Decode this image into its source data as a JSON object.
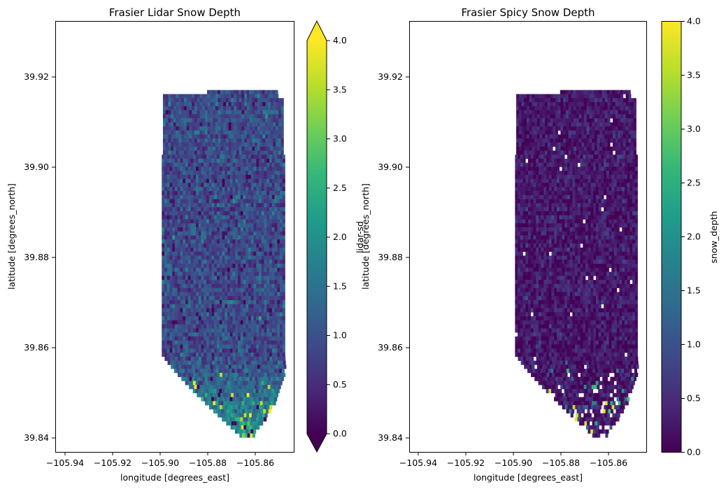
{
  "colormap": {
    "name": "viridis",
    "stops": [
      "#440154",
      "#482878",
      "#3e4989",
      "#31688e",
      "#26828e",
      "#1f9e89",
      "#35b779",
      "#6ece58",
      "#b5de2b",
      "#fde725"
    ]
  },
  "chart_data": [
    {
      "type": "heatmap",
      "title": "Frasier Lidar Snow Depth",
      "xlabel": "longitude [degrees_east]",
      "ylabel": "latitude [degrees_north]",
      "xlim": [
        -105.945,
        -105.845
      ],
      "ylim": [
        39.8365,
        39.9325
      ],
      "xticks": [
        "−105.94",
        "−105.92",
        "−105.90",
        "−105.88",
        "−105.86"
      ],
      "yticks": [
        "39.84",
        "39.86",
        "39.88",
        "39.90",
        "39.92"
      ],
      "data_extent": {
        "lon": [
          -105.9,
          -105.849
        ],
        "lat": [
          39.8398,
          39.9172
        ]
      },
      "value_range": [
        0.0,
        4.0
      ],
      "colorbar": {
        "label": "lidar-sd",
        "ticks": [
          "0.0",
          "0.5",
          "1.0",
          "1.5",
          "2.0",
          "2.5",
          "3.0",
          "3.5",
          "4.0"
        ],
        "extend": "both"
      },
      "summary": {
        "typical_value": 0.9,
        "spread": 0.35,
        "deep_snow_area": "south lobe, up to 4.0"
      }
    },
    {
      "type": "heatmap",
      "title": "Frasier Spicy Snow Depth",
      "xlabel": "longitude [degrees_east]",
      "ylabel": "latitude [degrees_north]",
      "xlim": [
        -105.945,
        -105.845
      ],
      "ylim": [
        39.8365,
        39.9325
      ],
      "xticks": [
        "−105.94",
        "−105.92",
        "−105.90",
        "−105.88",
        "−105.86"
      ],
      "yticks": [
        "39.84",
        "39.86",
        "39.88",
        "39.90",
        "39.92"
      ],
      "data_extent": {
        "lon": [
          -105.9,
          -105.849
        ],
        "lat": [
          39.8398,
          39.9172
        ]
      },
      "value_range": [
        0.0,
        4.0
      ],
      "colorbar": {
        "label": "snow_depth",
        "ticks": [
          "0.0",
          "0.5",
          "1.0",
          "1.5",
          "2.0",
          "2.5",
          "3.0",
          "3.5",
          "4.0"
        ],
        "extend": "neither"
      },
      "summary": {
        "typical_value": 0.25,
        "spread": 0.25,
        "missing_cells": "scattered, mostly south",
        "deep_snow_area": "south lobe, up to 3.8"
      }
    }
  ]
}
